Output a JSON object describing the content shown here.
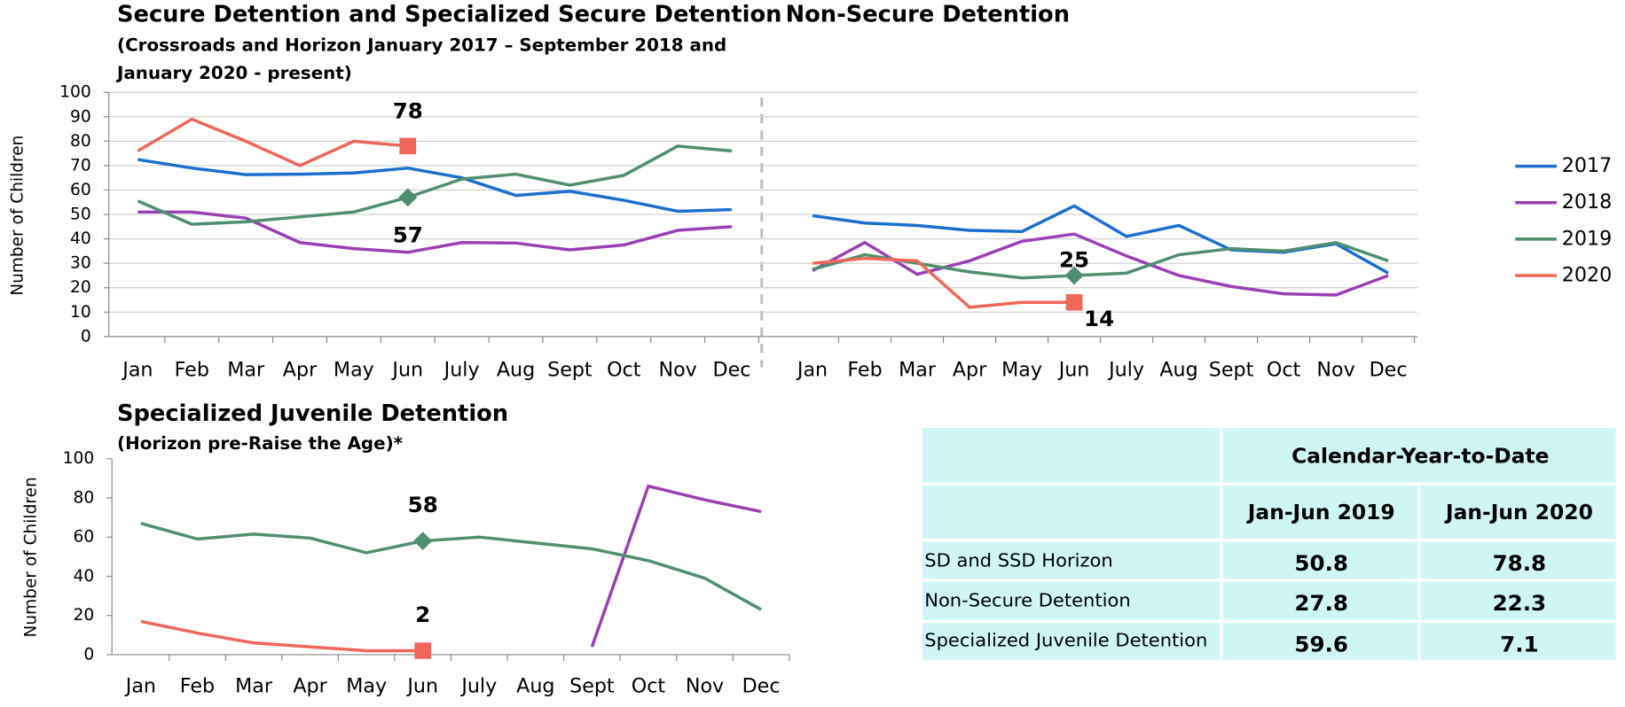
{
  "chart_data": [
    {
      "type": "line",
      "title": "Secure Detention and Specialized Secure Detention",
      "subtitle": [
        "(Crossroads and Horizon January  2017 – September 2018 and",
        "January 2020 - present)"
      ],
      "y_label": "Number of Children",
      "categories": [
        "Jan",
        "Feb",
        "Mar",
        "Apr",
        "May",
        "Jun",
        "July",
        "Aug",
        "Sept",
        "Oct",
        "Nov",
        "Dec"
      ],
      "ylim": [
        0,
        100
      ],
      "yticks": [
        0,
        10,
        20,
        30,
        40,
        50,
        60,
        70,
        80,
        90,
        100
      ],
      "grid": true,
      "series": [
        {
          "color": "#1a6fd0",
          "values": [
            72.5,
            69,
            66.3,
            66.5,
            67,
            69,
            65,
            57.8,
            59.5,
            55.8,
            51.3,
            52
          ]
        },
        {
          "color": "#9b3fb5",
          "values": [
            51,
            51,
            48.5,
            38.5,
            36,
            34.5,
            38.5,
            38.3,
            35.5,
            37.5,
            43.5,
            45
          ]
        },
        {
          "color": "#4f8f6f",
          "marker": "diamond",
          "values": [
            55.5,
            46,
            47,
            49,
            51,
            57,
            64.5,
            66.5,
            62,
            66,
            78,
            76
          ],
          "value_labels": [
            null,
            null,
            null,
            null,
            null,
            "57",
            null,
            null,
            null,
            null,
            null,
            null
          ]
        },
        {
          "color": "#f0665a",
          "marker": "square",
          "values": [
            76,
            89,
            80,
            70,
            80,
            78,
            null,
            null,
            null,
            null,
            null,
            null
          ],
          "value_labels": [
            null,
            null,
            null,
            null,
            null,
            "78",
            null,
            null,
            null,
            null,
            null,
            null
          ]
        }
      ]
    },
    {
      "type": "line",
      "title": "Non-Secure Detention",
      "categories": [
        "Jan",
        "Feb",
        "Mar",
        "Apr",
        "May",
        "Jun",
        "July",
        "Aug",
        "Sept",
        "Oct",
        "Nov",
        "Dec"
      ],
      "ylim": [
        0,
        100
      ],
      "legend": "right",
      "series": [
        {
          "name": "2017",
          "color": "#1a6fd0",
          "values": [
            49.5,
            46.5,
            45.5,
            43.5,
            43,
            53.5,
            41,
            45.5,
            35.5,
            34.5,
            38,
            26
          ]
        },
        {
          "name": "2018",
          "color": "#9b3fb5",
          "values": [
            27,
            38.5,
            25.5,
            31,
            39,
            42,
            33,
            25,
            20.5,
            17.5,
            17,
            25
          ]
        },
        {
          "name": "2019",
          "color": "#4f8f6f",
          "marker": "diamond",
          "values": [
            27.5,
            33.5,
            30,
            26.5,
            24,
            25,
            26,
            33.5,
            36,
            35,
            38.5,
            31
          ],
          "value_labels": [
            null,
            null,
            null,
            null,
            null,
            "25",
            null,
            null,
            null,
            null,
            null,
            null
          ]
        },
        {
          "name": "2020",
          "color": "#f0665a",
          "marker": "square",
          "values": [
            30,
            32,
            31,
            12,
            14,
            14,
            null,
            null,
            null,
            null,
            null,
            null
          ],
          "value_labels": [
            null,
            null,
            null,
            null,
            null,
            "14",
            null,
            null,
            null,
            null,
            null,
            null
          ]
        }
      ]
    },
    {
      "type": "line",
      "title": "Specialized Juvenile Detention",
      "subtitle": [
        "(Horizon pre-Raise the Age)*"
      ],
      "y_label": "Number of Children",
      "categories": [
        "Jan",
        "Feb",
        "Mar",
        "Apr",
        "May",
        "Jun",
        "July",
        "Aug",
        "Sept",
        "Oct",
        "Nov",
        "Dec"
      ],
      "ylim": [
        0,
        100
      ],
      "yticks": [
        0,
        20,
        40,
        60,
        80,
        100
      ],
      "grid": false,
      "series": [
        {
          "color": "#9b3fb5",
          "values": [
            null,
            null,
            null,
            null,
            null,
            null,
            null,
            null,
            4,
            86,
            79,
            73
          ]
        },
        {
          "color": "#4f8f6f",
          "marker": "diamond",
          "values": [
            67,
            59,
            61.5,
            59.5,
            52,
            58,
            60,
            57,
            54,
            48,
            39,
            23
          ],
          "value_labels": [
            null,
            null,
            null,
            null,
            null,
            "58",
            null,
            null,
            null,
            null,
            null,
            null
          ]
        },
        {
          "color": "#f0665a",
          "marker": "square",
          "values": [
            17,
            11,
            6,
            4,
            2,
            2,
            null,
            null,
            null,
            null,
            null,
            null
          ],
          "value_labels": [
            null,
            null,
            null,
            null,
            null,
            "2",
            null,
            null,
            null,
            null,
            null,
            null
          ]
        }
      ]
    }
  ],
  "table": {
    "title": "Calendar-Year-to-Date",
    "columns": [
      "Jan-Jun 2019",
      "Jan-Jun 2020"
    ],
    "rows": [
      [
        "SD and SSD Horizon",
        50.8,
        78.8
      ],
      [
        "Non-Secure Detention",
        27.8,
        22.3
      ],
      [
        "Specialized Juvenile Detention",
        59.6,
        7.1
      ]
    ]
  }
}
